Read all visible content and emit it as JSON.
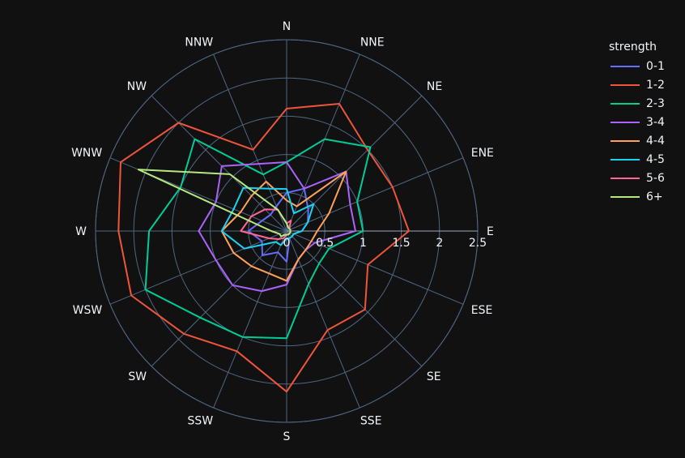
{
  "chart_data": {
    "type": "line_polar",
    "directions": [
      "N",
      "NNE",
      "NE",
      "ENE",
      "E",
      "ESE",
      "SE",
      "SSE",
      "S",
      "SSW",
      "SW",
      "WSW",
      "W",
      "WNW",
      "NW",
      "NNW"
    ],
    "radial_ticks": [
      "0",
      "0.5",
      "1",
      "1.5",
      "2",
      "2.5"
    ],
    "radial_range": [
      0,
      2.5
    ],
    "legend_title": "strength",
    "legend_position": "top-right",
    "series": [
      {
        "name": "0-1",
        "color": "#636efa",
        "values": [
          0.5,
          0.6,
          0.4,
          0.3,
          0.2,
          0.1,
          0.1,
          0.1,
          0.4,
          0.3,
          0.45,
          0.35,
          0.5,
          0.35,
          0.3,
          0.35
        ]
      },
      {
        "name": "1-2",
        "color": "#ef553b",
        "values": [
          1.6,
          1.8,
          1.5,
          1.5,
          1.6,
          1.15,
          1.45,
          1.4,
          2.1,
          1.7,
          1.9,
          2.2,
          2.2,
          2.35,
          2.0,
          1.15
        ]
      },
      {
        "name": "2-3",
        "color": "#00cc96",
        "values": [
          0.9,
          1.3,
          1.55,
          1.0,
          1.0,
          0.6,
          0.6,
          0.75,
          1.4,
          1.5,
          1.6,
          2.0,
          1.8,
          1.5,
          1.7,
          0.8
        ]
      },
      {
        "name": "3-4",
        "color": "#ab63fa",
        "values": [
          0.9,
          0.6,
          1.1,
          0.9,
          0.9,
          0.4,
          0.35,
          0.4,
          0.7,
          0.85,
          1.0,
          1.0,
          1.15,
          1.0,
          1.2,
          0.95
        ]
      },
      {
        "name": "4-4",
        "color": "#ffa15a",
        "values": [
          0.4,
          0.35,
          1.1,
          0.6,
          0.4,
          0.35,
          0.35,
          0.4,
          0.65,
          0.6,
          0.65,
          0.75,
          0.85,
          0.65,
          0.65,
          0.7
        ]
      },
      {
        "name": "4-5",
        "color": "#19d3f3",
        "values": [
          0.55,
          0.25,
          0.5,
          0.3,
          0.2,
          0.1,
          0.1,
          0.1,
          0.1,
          0.2,
          0.2,
          0.6,
          0.85,
          0.75,
          0.8,
          0.6
        ]
      },
      {
        "name": "5-6",
        "color": "#ff6692",
        "values": [
          0.1,
          0.15,
          0.05,
          0.05,
          0.05,
          0.05,
          0.05,
          0.05,
          0.05,
          0.1,
          0.15,
          0.25,
          0.6,
          0.5,
          0.4,
          0.3
        ]
      },
      {
        "name": "6+",
        "color": "#b6e880",
        "values": [
          0.1,
          0.05,
          0.05,
          0.05,
          0.05,
          0.05,
          0.05,
          0.05,
          0.05,
          0.05,
          0.1,
          0.1,
          0.2,
          2.1,
          1.05,
          0.3
        ]
      }
    ]
  }
}
